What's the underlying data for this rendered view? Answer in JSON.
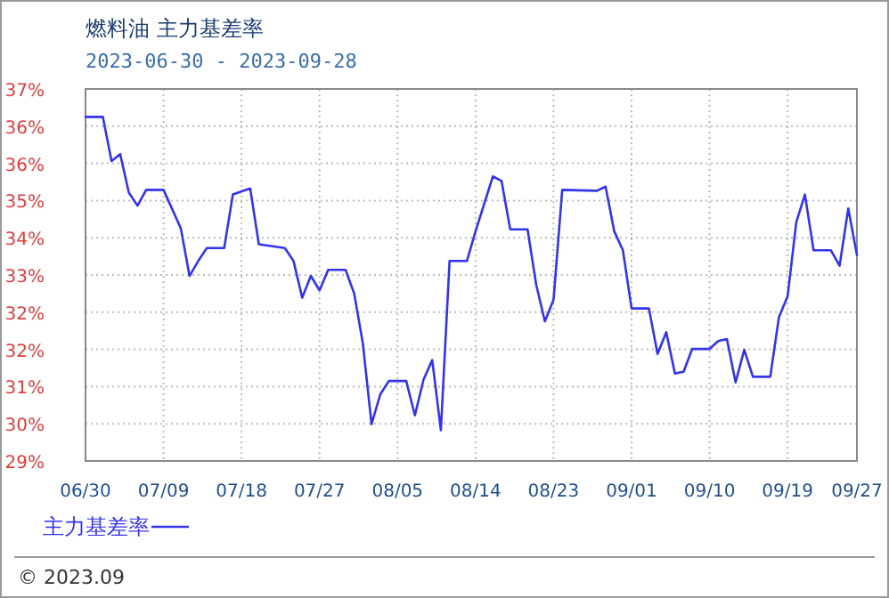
{
  "chart_data": {
    "type": "line",
    "title": "燃料油 主力基差率",
    "subtitle": "2023-06-30 - 2023-09-28",
    "x": [
      "2023-06-30",
      "2023-07-02",
      "2023-07-03",
      "2023-07-04",
      "2023-07-05",
      "2023-07-06",
      "2023-07-07",
      "2023-07-09",
      "2023-07-11",
      "2023-07-12",
      "2023-07-13",
      "2023-07-14",
      "2023-07-16",
      "2023-07-17",
      "2023-07-19",
      "2023-07-20",
      "2023-07-23",
      "2023-07-24",
      "2023-07-25",
      "2023-07-26",
      "2023-07-27",
      "2023-07-28",
      "2023-07-30",
      "2023-07-31",
      "2023-08-01",
      "2023-08-02",
      "2023-08-03",
      "2023-08-04",
      "2023-08-06",
      "2023-08-07",
      "2023-08-08",
      "2023-08-09",
      "2023-08-10",
      "2023-08-11",
      "2023-08-13",
      "2023-08-14",
      "2023-08-16",
      "2023-08-17",
      "2023-08-18",
      "2023-08-20",
      "2023-08-21",
      "2023-08-22",
      "2023-08-23",
      "2023-08-24",
      "2023-08-28",
      "2023-08-29",
      "2023-08-30",
      "2023-08-31",
      "2023-09-01",
      "2023-09-03",
      "2023-09-04",
      "2023-09-05",
      "2023-09-06",
      "2023-09-07",
      "2023-09-08",
      "2023-09-10",
      "2023-09-11",
      "2023-09-12",
      "2023-09-13",
      "2023-09-14",
      "2023-09-15",
      "2023-09-17",
      "2023-09-18",
      "2023-09-19",
      "2023-09-20",
      "2023-09-21",
      "2023-09-22",
      "2023-09-24",
      "2023-09-25",
      "2023-09-26",
      "2023-09-27"
    ],
    "series": [
      {
        "name": "主力基差率",
        "color": "#3333ee",
        "values": [
          36.6,
          36.6,
          35.65,
          35.8,
          34.97,
          34.69,
          35.03,
          35.03,
          34.2,
          33.18,
          33.5,
          33.78,
          33.78,
          34.93,
          35.06,
          33.86,
          33.78,
          33.5,
          32.71,
          33.18,
          32.87,
          33.31,
          33.31,
          32.8,
          31.72,
          29.99,
          30.63,
          30.92,
          30.92,
          30.18,
          30.95,
          31.37,
          29.86,
          33.5,
          33.5,
          34.14,
          35.32,
          35.22,
          34.18,
          34.18,
          32.99,
          32.2,
          32.67,
          35.03,
          35.01,
          35.1,
          34.14,
          33.73,
          32.48,
          32.48,
          31.5,
          31.97,
          31.08,
          31.12,
          31.61,
          31.61,
          31.78,
          31.82,
          30.89,
          31.59,
          31.01,
          31.01,
          32.29,
          32.74,
          34.33,
          34.93,
          33.73,
          33.73,
          33.4,
          34.63,
          33.63
        ]
      }
    ],
    "xlim": [
      "2023-06-30",
      "2023-09-27"
    ],
    "xticks": [
      {
        "value": "2023-06-30",
        "label": "06/30"
      },
      {
        "value": "2023-07-09",
        "label": "07/09"
      },
      {
        "value": "2023-07-18",
        "label": "07/18"
      },
      {
        "value": "2023-07-27",
        "label": "07/27"
      },
      {
        "value": "2023-08-05",
        "label": "08/05"
      },
      {
        "value": "2023-08-14",
        "label": "08/14"
      },
      {
        "value": "2023-08-23",
        "label": "08/23"
      },
      {
        "value": "2023-09-01",
        "label": "09/01"
      },
      {
        "value": "2023-09-10",
        "label": "09/10"
      },
      {
        "value": "2023-09-19",
        "label": "09/19"
      },
      {
        "value": "2023-09-27",
        "label": "09/27"
      }
    ],
    "ylim": [
      29.2,
      37.2
    ],
    "yticks": [
      {
        "value": 29.2,
        "label": "29%"
      },
      {
        "value": 30,
        "label": "30%"
      },
      {
        "value": 30.8,
        "label": "31%"
      },
      {
        "value": 31.6,
        "label": "32%"
      },
      {
        "value": 32.4,
        "label": "32%"
      },
      {
        "value": 33.2,
        "label": "33%"
      },
      {
        "value": 34,
        "label": "34%"
      },
      {
        "value": 34.8,
        "label": "35%"
      },
      {
        "value": 35.6,
        "label": "36%"
      },
      {
        "value": 36.4,
        "label": "36%"
      },
      {
        "value": 37.2,
        "label": "37%"
      }
    ],
    "grid": true,
    "legend": "bottom left",
    "marker": "none",
    "line_style": "solid",
    "annotations": [
      "© 2023.09"
    ]
  }
}
